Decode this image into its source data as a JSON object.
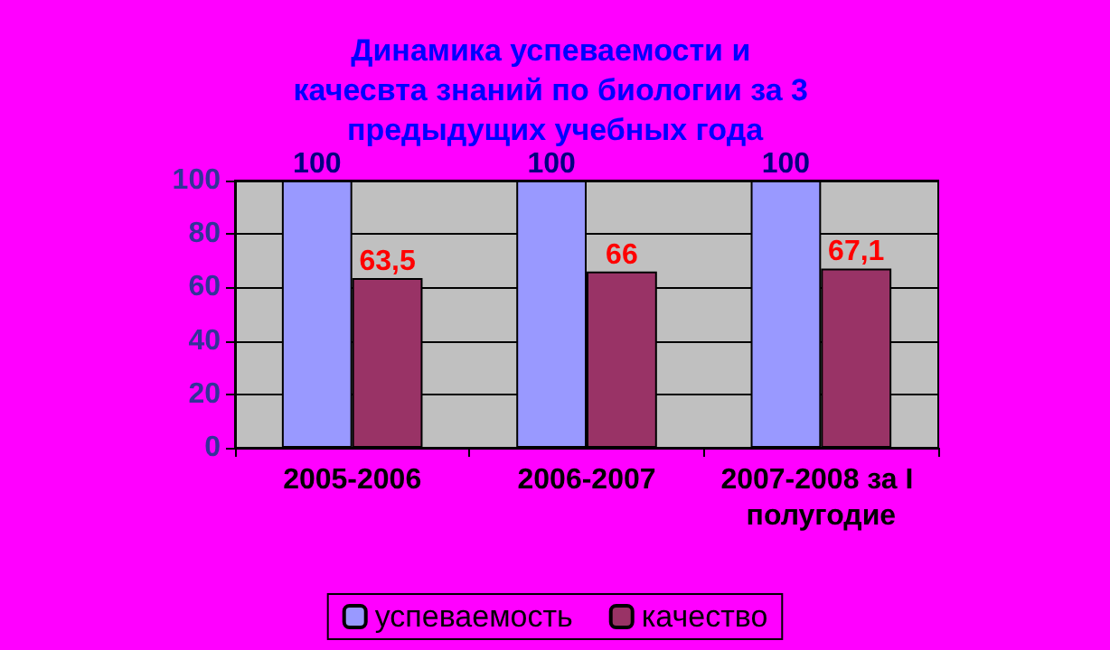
{
  "chart_data": {
    "type": "bar",
    "title": "Динамика успеваемости и качесвта знаний по биологии за 3 предыдущих учебных года",
    "categories": [
      "2005-2006",
      "2006-2007",
      "2007-2008 за I полугодие"
    ],
    "series": [
      {
        "name": "успеваемость",
        "color": "#9999ff",
        "values": [
          100,
          100,
          100
        ],
        "value_labels": [
          "100",
          "100",
          "100"
        ]
      },
      {
        "name": "качество",
        "color": "#993366",
        "values": [
          63.5,
          66,
          67.1
        ],
        "value_labels": [
          "63,5",
          "66",
          "67,1"
        ]
      }
    ],
    "ylim": [
      0,
      100
    ],
    "yticks": [
      0,
      20,
      40,
      60,
      80,
      100
    ],
    "grid": "y",
    "legend": "bottom"
  }
}
